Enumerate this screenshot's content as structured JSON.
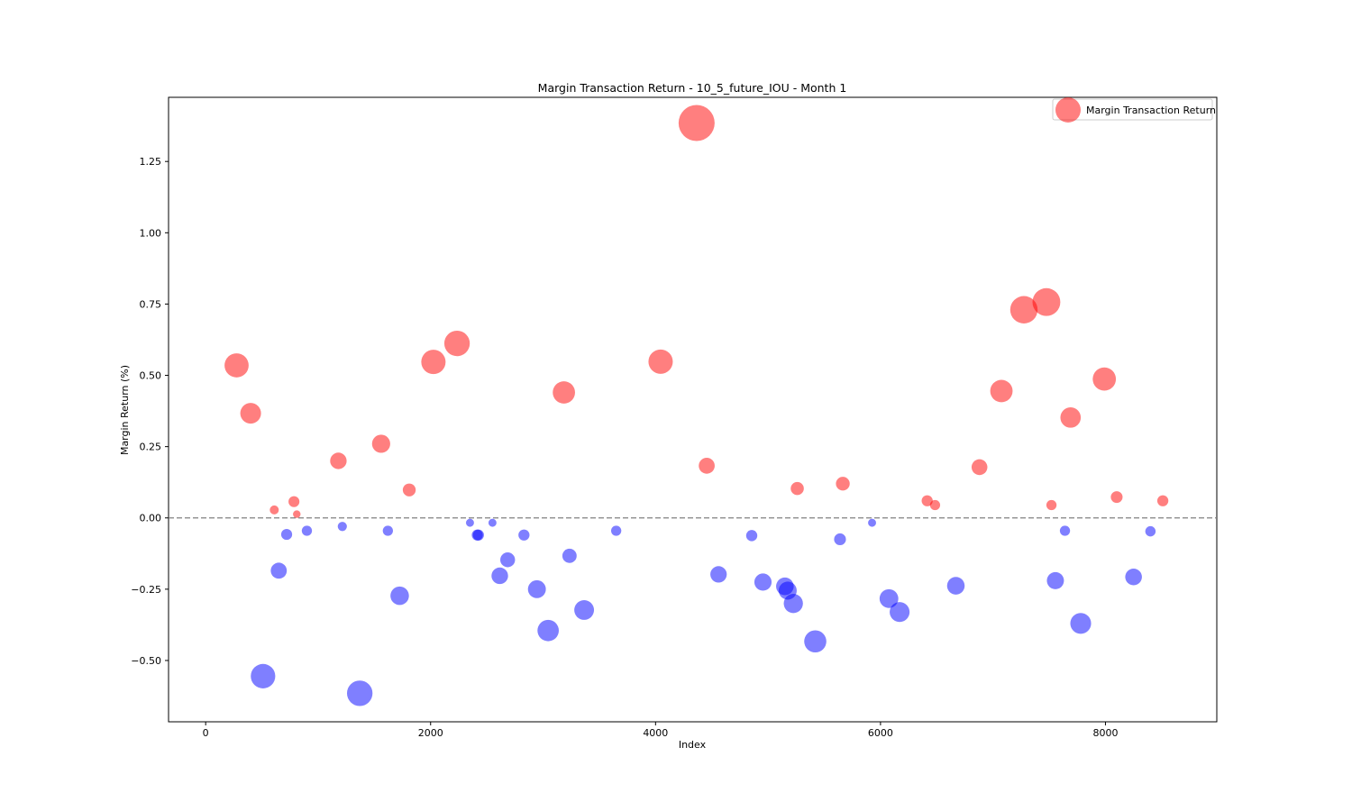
{
  "chart_data": {
    "type": "scatter",
    "title": "Margin Transaction Return - 10_5_future_IOU - Month 1",
    "xlabel": "Index",
    "ylabel": "Margin Return (%)",
    "xlim": [
      -330,
      8990
    ],
    "ylim": [
      -0.715,
      1.475
    ],
    "xticks": [
      0,
      2000,
      4000,
      6000,
      8000
    ],
    "yticks": [
      -0.5,
      -0.25,
      0.0,
      0.25,
      0.5,
      0.75,
      1.0,
      1.25
    ],
    "xtick_labels": [
      "0",
      "2000",
      "4000",
      "6000",
      "8000"
    ],
    "ytick_labels": [
      "−0.50",
      "−0.25",
      "0.00",
      "0.25",
      "0.50",
      "0.75",
      "1.00",
      "1.25"
    ],
    "zero_line": {
      "y": 0.0,
      "style": "dashed",
      "color": "#808080"
    },
    "grid": false,
    "legend": {
      "position": "top-right",
      "entries": [
        "Margin Transaction Return"
      ]
    },
    "colors": {
      "positive": "#ff0000",
      "negative": "#0000ff",
      "alpha": 0.5
    },
    "series": [
      {
        "name": "Margin Transaction Return",
        "x": [
          275,
          400,
          510,
          610,
          650,
          720,
          785,
          810,
          900,
          1180,
          1215,
          1370,
          1560,
          1620,
          1725,
          1810,
          2025,
          2235,
          2350,
          2415,
          2425,
          2550,
          2615,
          2685,
          2830,
          2945,
          3045,
          3185,
          3235,
          3365,
          3650,
          4045,
          4365,
          4455,
          4560,
          4855,
          4955,
          5150,
          5175,
          5225,
          5260,
          5420,
          5640,
          5665,
          5925,
          6075,
          6170,
          6415,
          6485,
          6670,
          6880,
          7075,
          7275,
          7475,
          7520,
          7555,
          7640,
          7690,
          7780,
          7990,
          8100,
          8250,
          8400,
          8510
        ],
        "y": [
          0.535,
          0.367,
          -0.555,
          0.028,
          -0.185,
          -0.058,
          0.057,
          0.013,
          -0.045,
          0.2,
          -0.03,
          -0.615,
          0.26,
          -0.045,
          -0.273,
          0.098,
          0.547,
          0.612,
          -0.017,
          -0.06,
          -0.06,
          -0.017,
          -0.203,
          -0.147,
          -0.06,
          -0.25,
          -0.395,
          0.44,
          -0.133,
          -0.323,
          -0.045,
          0.548,
          1.385,
          0.183,
          -0.198,
          -0.062,
          -0.225,
          -0.24,
          -0.255,
          -0.3,
          0.103,
          -0.433,
          -0.075,
          0.12,
          -0.017,
          -0.283,
          -0.33,
          0.06,
          0.045,
          -0.238,
          0.178,
          0.445,
          0.73,
          0.757,
          0.045,
          -0.22,
          -0.045,
          0.352,
          -0.37,
          0.487,
          0.073,
          -0.207,
          -0.047,
          0.06
        ]
      }
    ]
  }
}
